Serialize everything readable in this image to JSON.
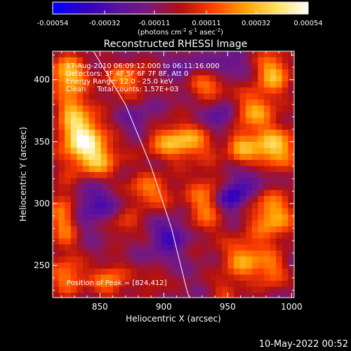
{
  "chart_data": {
    "type": "heatmap",
    "title": "Reconstructed RHESSI Image",
    "xlabel": "Heliocentric X (arcsec)",
    "ylabel": "Heliocentric Y (arcsec)",
    "xlim": [
      813,
      1002
    ],
    "ylim": [
      224,
      423
    ],
    "x_ticks": [
      850,
      900,
      950,
      1000
    ],
    "y_ticks": [
      250,
      300,
      350,
      400
    ],
    "x_tick_labels": [
      "850",
      "900",
      "950",
      "1000"
    ],
    "y_tick_labels": [
      "250",
      "300",
      "350",
      "400"
    ],
    "info_lines": [
      "17-Aug-2010 06:09:12.000 to 06:11:16.000",
      "Detectors: 3F 4F 5F 6F 7F 8F, Att 0",
      "Energy Range: 12.0 - 25.0 keV",
      "Clean     Total counts: 1.57E+03"
    ],
    "peak_label": "Position of Peak = [824,412]",
    "peak_position": [
      824,
      412
    ],
    "colorbar": {
      "range": [
        -0.00054,
        0.00054
      ],
      "tick_values": [
        -0.00054,
        -0.00032,
        -0.00011,
        0.00011,
        0.00032,
        0.00054
      ],
      "tick_labels": [
        "-0.00054",
        "-0.00032",
        "-0.00011",
        "0.00011",
        "0.00032",
        "0.00054"
      ],
      "unit_main": "(photons cm",
      "unit_exp1": "-2",
      "unit_mid": " s",
      "unit_exp2": "-1",
      "unit_end": " asec",
      "unit_exp3": "-2",
      "unit_close": ")",
      "colors": [
        "#0000ff",
        "#2f00c0",
        "#5a10a0",
        "#7a1a7a",
        "#b01010",
        "#ff4000",
        "#ff9f00",
        "#ffe060",
        "#ffffff"
      ]
    },
    "limb_curve": [
      [
        845,
        423
      ],
      [
        870,
        380
      ],
      [
        890,
        330
      ],
      [
        906,
        280
      ],
      [
        918,
        230
      ],
      [
        920,
        224
      ]
    ],
    "blobs": [
      {
        "x": 835,
        "y": 355,
        "sx": 12,
        "sy": 14,
        "v": 0.00054
      },
      {
        "x": 825,
        "y": 405,
        "sx": 10,
        "sy": 10,
        "v": 0.00045
      },
      {
        "x": 848,
        "y": 335,
        "sx": 12,
        "sy": 12,
        "v": 0.00036
      },
      {
        "x": 828,
        "y": 380,
        "sx": 8,
        "sy": 10,
        "v": 0.00028
      },
      {
        "x": 912,
        "y": 350,
        "sx": 18,
        "sy": 10,
        "v": 0.00044
      },
      {
        "x": 870,
        "y": 400,
        "sx": 12,
        "sy": 10,
        "v": 0.0003
      },
      {
        "x": 935,
        "y": 395,
        "sx": 12,
        "sy": 8,
        "v": 0.0003
      },
      {
        "x": 985,
        "y": 405,
        "sx": 10,
        "sy": 12,
        "v": 0.0004
      },
      {
        "x": 970,
        "y": 375,
        "sx": 12,
        "sy": 10,
        "v": 0.00034
      },
      {
        "x": 985,
        "y": 345,
        "sx": 14,
        "sy": 12,
        "v": 0.00046
      },
      {
        "x": 960,
        "y": 345,
        "sx": 8,
        "sy": 10,
        "v": 0.00026
      },
      {
        "x": 985,
        "y": 290,
        "sx": 12,
        "sy": 14,
        "v": 0.0004
      },
      {
        "x": 963,
        "y": 255,
        "sx": 12,
        "sy": 12,
        "v": 0.00036
      },
      {
        "x": 985,
        "y": 245,
        "sx": 8,
        "sy": 10,
        "v": 0.00026
      },
      {
        "x": 932,
        "y": 300,
        "sx": 10,
        "sy": 18,
        "v": 0.0003
      },
      {
        "x": 888,
        "y": 310,
        "sx": 14,
        "sy": 10,
        "v": 0.0003
      },
      {
        "x": 868,
        "y": 283,
        "sx": 10,
        "sy": 8,
        "v": 0.00022
      },
      {
        "x": 822,
        "y": 290,
        "sx": 8,
        "sy": 20,
        "v": 0.00036
      },
      {
        "x": 825,
        "y": 240,
        "sx": 10,
        "sy": 10,
        "v": 0.0003
      },
      {
        "x": 858,
        "y": 238,
        "sx": 10,
        "sy": 10,
        "v": 0.0003
      },
      {
        "x": 893,
        "y": 240,
        "sx": 8,
        "sy": 8,
        "v": 0.00018
      },
      {
        "x": 948,
        "y": 230,
        "sx": 8,
        "sy": 8,
        "v": 0.00016
      },
      {
        "x": 845,
        "y": 300,
        "sx": 16,
        "sy": 14,
        "v": -0.00022
      },
      {
        "x": 905,
        "y": 275,
        "sx": 10,
        "sy": 8,
        "v": -0.00026
      },
      {
        "x": 953,
        "y": 305,
        "sx": 8,
        "sy": 8,
        "v": -0.00036
      },
      {
        "x": 945,
        "y": 370,
        "sx": 8,
        "sy": 10,
        "v": -0.00022
      },
      {
        "x": 880,
        "y": 365,
        "sx": 10,
        "sy": 10,
        "v": -0.00014
      },
      {
        "x": 970,
        "y": 320,
        "sx": 10,
        "sy": 8,
        "v": -0.00018
      },
      {
        "x": 950,
        "y": 410,
        "sx": 10,
        "sy": 8,
        "v": -0.00018
      },
      {
        "x": 915,
        "y": 410,
        "sx": 8,
        "sy": 8,
        "v": -0.00014
      },
      {
        "x": 900,
        "y": 255,
        "sx": 10,
        "sy": 8,
        "v": -0.00012
      }
    ]
  },
  "footer_timestamp": "10-May-2022 00:52"
}
